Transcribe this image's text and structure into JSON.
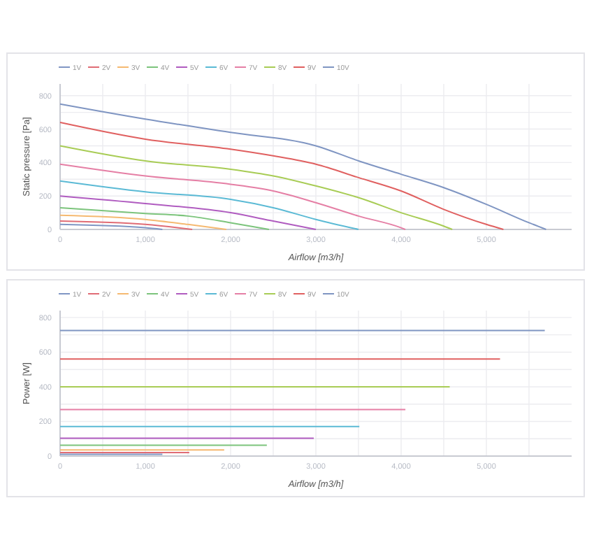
{
  "chart_data": [
    {
      "type": "line",
      "xlabel": "Airflow [m3/h]",
      "ylabel": "Static pressure [Pa]",
      "xlim": [
        0,
        6000
      ],
      "ylim": [
        0,
        870
      ],
      "xticks": [
        0,
        {
          "value": 500,
          "label": null
        },
        {
          "value": 1000,
          "label": "1,000"
        },
        {
          "value": 1500,
          "label": null
        },
        {
          "value": 2000,
          "label": "2,000"
        },
        {
          "value": 2500,
          "label": null
        },
        {
          "value": 3000,
          "label": "3,000"
        },
        {
          "value": 3500,
          "label": null
        },
        {
          "value": 4000,
          "label": "4,000"
        },
        {
          "value": 4500,
          "label": null
        },
        {
          "value": 5000,
          "label": "5,000"
        },
        {
          "value": 5500,
          "label": null
        }
      ],
      "yticks": [
        0,
        {
          "value": 100,
          "label": null
        },
        200,
        {
          "value": 300,
          "label": null
        },
        400,
        {
          "value": 500,
          "label": null
        },
        600,
        {
          "value": 700,
          "label": null
        },
        800
      ],
      "grid": true,
      "legend": "top",
      "marker": "none",
      "series": [
        {
          "name": "1V",
          "color": "#8096c4",
          "x": [
            0,
            1000,
            1200
          ],
          "values": [
            30,
            10,
            0
          ]
        },
        {
          "name": "2V",
          "color": "#e06c75",
          "x": [
            0,
            1000,
            1550
          ],
          "values": [
            50,
            30,
            0
          ]
        },
        {
          "name": "3V",
          "color": "#f5b971",
          "x": [
            0,
            1000,
            1500,
            1950
          ],
          "values": [
            85,
            60,
            30,
            0
          ]
        },
        {
          "name": "4V",
          "color": "#7cc47c",
          "x": [
            0,
            1000,
            1500,
            2000,
            2450
          ],
          "values": [
            130,
            95,
            80,
            40,
            0
          ]
        },
        {
          "name": "5V",
          "color": "#b05cc0",
          "x": [
            0,
            1000,
            2000,
            2500,
            3000
          ],
          "values": [
            200,
            155,
            100,
            50,
            0
          ]
        },
        {
          "name": "6V",
          "color": "#5bbad5",
          "x": [
            0,
            1000,
            2000,
            2500,
            3000,
            3500
          ],
          "values": [
            290,
            225,
            180,
            130,
            60,
            0
          ]
        },
        {
          "name": "7V",
          "color": "#e57fa5",
          "x": [
            0,
            1000,
            2000,
            2500,
            3000,
            3500,
            4000,
            4050
          ],
          "values": [
            390,
            320,
            270,
            230,
            160,
            80,
            10,
            0
          ]
        },
        {
          "name": "8V",
          "color": "#a8cc55",
          "x": [
            0,
            1000,
            2000,
            2500,
            3000,
            3500,
            4000,
            4500,
            4600
          ],
          "values": [
            500,
            410,
            360,
            320,
            260,
            190,
            100,
            20,
            0
          ]
        },
        {
          "name": "9V",
          "color": "#e06060",
          "x": [
            0,
            1000,
            2000,
            2500,
            3000,
            3500,
            4000,
            4500,
            5000,
            5200
          ],
          "values": [
            640,
            540,
            480,
            440,
            390,
            310,
            230,
            120,
            30,
            0
          ]
        },
        {
          "name": "10V",
          "color": "#7f95c2",
          "x": [
            0,
            1000,
            2000,
            3000,
            3500,
            4000,
            4500,
            5000,
            5500,
            5700
          ],
          "values": [
            750,
            660,
            580,
            500,
            410,
            330,
            250,
            150,
            40,
            0
          ]
        }
      ]
    },
    {
      "type": "line",
      "xlabel": "Airflow [m3/h]",
      "ylabel": "Power [W]",
      "xlim": [
        0,
        6000
      ],
      "ylim": [
        0,
        840
      ],
      "xticks": [
        0,
        {
          "value": 500,
          "label": null
        },
        {
          "value": 1000,
          "label": "1,000"
        },
        {
          "value": 1500,
          "label": null
        },
        {
          "value": 2000,
          "label": "2,000"
        },
        {
          "value": 2500,
          "label": null
        },
        {
          "value": 3000,
          "label": "3,000"
        },
        {
          "value": 3500,
          "label": null
        },
        {
          "value": 4000,
          "label": "4,000"
        },
        {
          "value": 4500,
          "label": null
        },
        {
          "value": 5000,
          "label": "5,000"
        },
        {
          "value": 5500,
          "label": null
        }
      ],
      "yticks": [
        0,
        {
          "value": 100,
          "label": null
        },
        200,
        {
          "value": 300,
          "label": null
        },
        400,
        {
          "value": 500,
          "label": null
        },
        600,
        {
          "value": 700,
          "label": null
        },
        800
      ],
      "grid": true,
      "legend": "top",
      "marker": "none",
      "series": [
        {
          "name": "1V",
          "color": "#8096c4",
          "x": [
            0,
            1200
          ],
          "values": [
            10,
            10
          ]
        },
        {
          "name": "2V",
          "color": "#e06c75",
          "x": [
            0,
            1515
          ],
          "values": [
            20,
            20
          ]
        },
        {
          "name": "3V",
          "color": "#f5b971",
          "x": [
            0,
            1925
          ],
          "values": [
            35,
            35
          ]
        },
        {
          "name": "4V",
          "color": "#7cc47c",
          "x": [
            0,
            2425
          ],
          "values": [
            63,
            63
          ]
        },
        {
          "name": "5V",
          "color": "#b05cc0",
          "x": [
            0,
            2975
          ],
          "values": [
            103,
            103
          ]
        },
        {
          "name": "6V",
          "color": "#5bbad5",
          "x": [
            0,
            3510
          ],
          "values": [
            171,
            171
          ]
        },
        {
          "name": "7V",
          "color": "#e57fa5",
          "x": [
            0,
            4050
          ],
          "values": [
            269,
            269
          ]
        },
        {
          "name": "8V",
          "color": "#a8cc55",
          "x": [
            0,
            4570
          ],
          "values": [
            400,
            400
          ]
        },
        {
          "name": "9V",
          "color": "#e06060",
          "x": [
            0,
            5160
          ],
          "values": [
            560,
            560
          ]
        },
        {
          "name": "10V",
          "color": "#7f95c2",
          "x": [
            0,
            5685
          ],
          "values": [
            725,
            725
          ]
        }
      ]
    }
  ]
}
